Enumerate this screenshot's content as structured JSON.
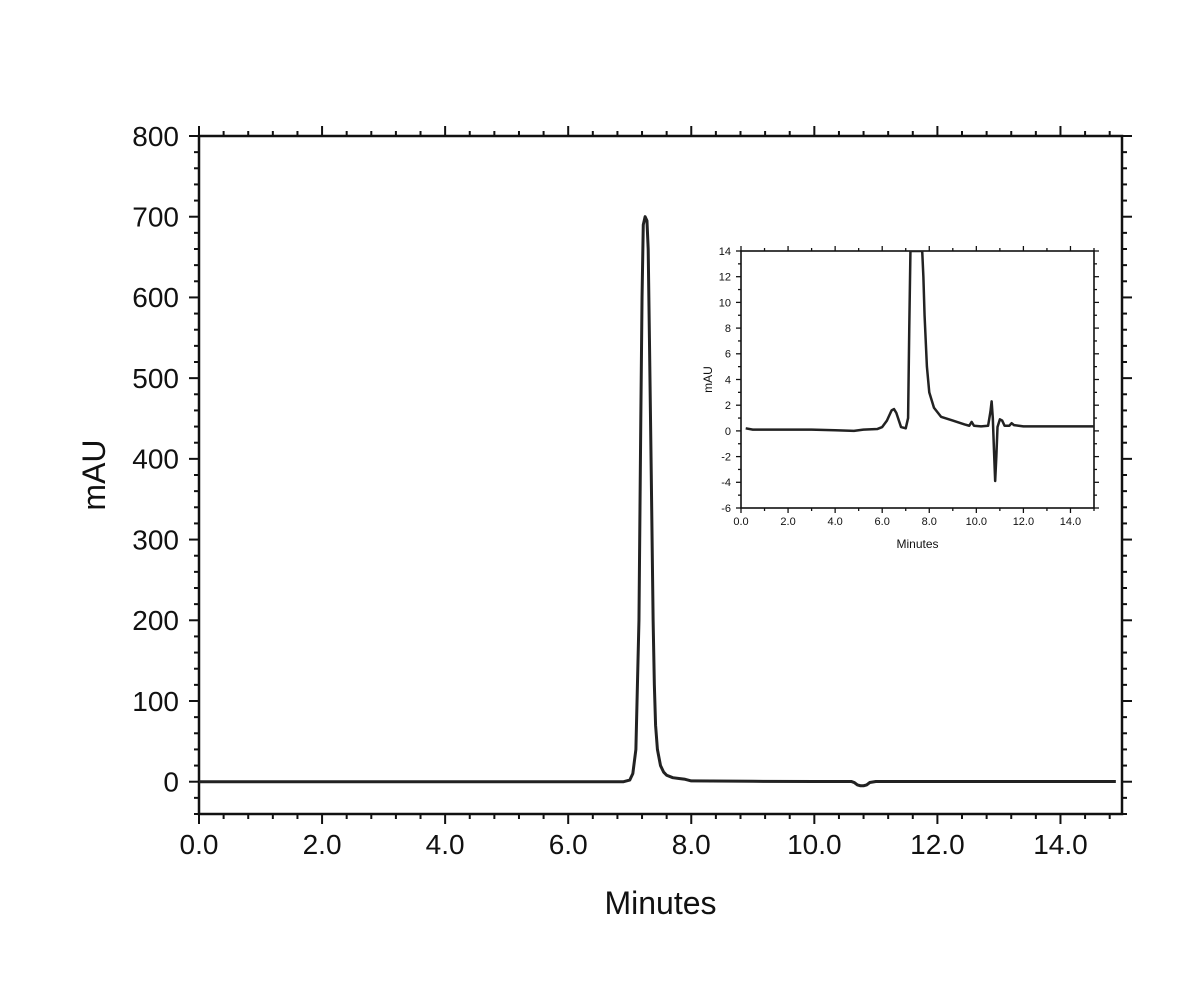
{
  "chart_data": [
    {
      "id": "main",
      "type": "line",
      "xlabel": "Minutes",
      "ylabel": "mAU",
      "xlim": [
        0,
        15
      ],
      "ylim": [
        -40,
        800
      ],
      "x_ticks": [
        0,
        2,
        4,
        6,
        8,
        10,
        12,
        14
      ],
      "x_tick_labels": [
        "0.0",
        "2.0",
        "4.0",
        "6.0",
        "8.0",
        "10.0",
        "12.0",
        "14.0"
      ],
      "y_ticks": [
        0,
        100,
        200,
        300,
        400,
        500,
        600,
        700,
        800
      ],
      "y_tick_labels": [
        "0",
        "100",
        "200",
        "300",
        "400",
        "500",
        "600",
        "700",
        "800"
      ],
      "grid": false,
      "line_color": "#222222",
      "series": [
        {
          "x": [
            0,
            1,
            2,
            3,
            4,
            5,
            6,
            6.9,
            7.0,
            7.05,
            7.1,
            7.15,
            7.18,
            7.2,
            7.22,
            7.25,
            7.28,
            7.3,
            7.32,
            7.35,
            7.38,
            7.4,
            7.42,
            7.45,
            7.5,
            7.55,
            7.6,
            7.7,
            7.8,
            7.9,
            8.0,
            9,
            10,
            10.6,
            10.65,
            10.7,
            10.75,
            10.8,
            10.85,
            10.9,
            11.0,
            12,
            13,
            14,
            14.9
          ],
          "y": [
            0,
            0,
            0,
            0,
            0,
            0,
            0,
            0,
            2,
            10,
            40,
            200,
            450,
            600,
            690,
            700,
            695,
            660,
            550,
            380,
            200,
            120,
            70,
            40,
            20,
            12,
            8,
            5,
            4,
            3,
            1,
            0.5,
            0.3,
            0.3,
            -1,
            -4,
            -5,
            -5,
            -4,
            -1,
            0.3,
            0.3,
            0.3,
            0.3,
            0.3
          ]
        }
      ]
    },
    {
      "id": "inset",
      "type": "line",
      "xlabel": "Minutes",
      "ylabel": "mAU",
      "xlim": [
        0,
        15
      ],
      "ylim": [
        -6,
        14
      ],
      "x_ticks": [
        0,
        2,
        4,
        6,
        8,
        10,
        12,
        14
      ],
      "x_tick_labels": [
        "0.0",
        "2.0",
        "4.0",
        "6.0",
        "8.0",
        "10.0",
        "12.0",
        "14.0"
      ],
      "y_ticks": [
        -6,
        -4,
        -2,
        0,
        2,
        4,
        6,
        8,
        10,
        12,
        14
      ],
      "y_tick_labels": [
        "-6",
        "-4",
        "-2",
        "0",
        "2",
        "4",
        "6",
        "8",
        "10",
        "12",
        "14"
      ],
      "grid": false,
      "line_color": "#222222",
      "series": [
        {
          "x": [
            0.2,
            0.5,
            1,
            2,
            3,
            4,
            4.8,
            5.2,
            5.8,
            6.0,
            6.2,
            6.4,
            6.5,
            6.6,
            6.8,
            7.0,
            7.1,
            7.15,
            7.2,
            7.25,
            7.7,
            7.75,
            7.8,
            7.9,
            8.0,
            8.2,
            8.5,
            9.0,
            9.5,
            9.7,
            9.8,
            9.9,
            10.2,
            10.5,
            10.6,
            10.65,
            10.7,
            10.75,
            10.8,
            10.85,
            10.9,
            11.0,
            11.1,
            11.2,
            11.4,
            11.5,
            11.6,
            11.8,
            12.0,
            13,
            14,
            15
          ],
          "y": [
            0.2,
            0.1,
            0.1,
            0.1,
            0.1,
            0.05,
            0,
            0.1,
            0.15,
            0.3,
            0.8,
            1.6,
            1.7,
            1.4,
            0.3,
            0.2,
            1.0,
            8,
            14,
            14,
            14,
            12,
            9,
            5,
            3,
            1.8,
            1.1,
            0.8,
            0.5,
            0.4,
            0.7,
            0.4,
            0.35,
            0.4,
            1.5,
            2.3,
            1.0,
            -1.5,
            -3.9,
            -2.0,
            0.3,
            0.9,
            0.8,
            0.4,
            0.4,
            0.6,
            0.45,
            0.4,
            0.35,
            0.35,
            0.35,
            0.35
          ]
        }
      ]
    }
  ]
}
